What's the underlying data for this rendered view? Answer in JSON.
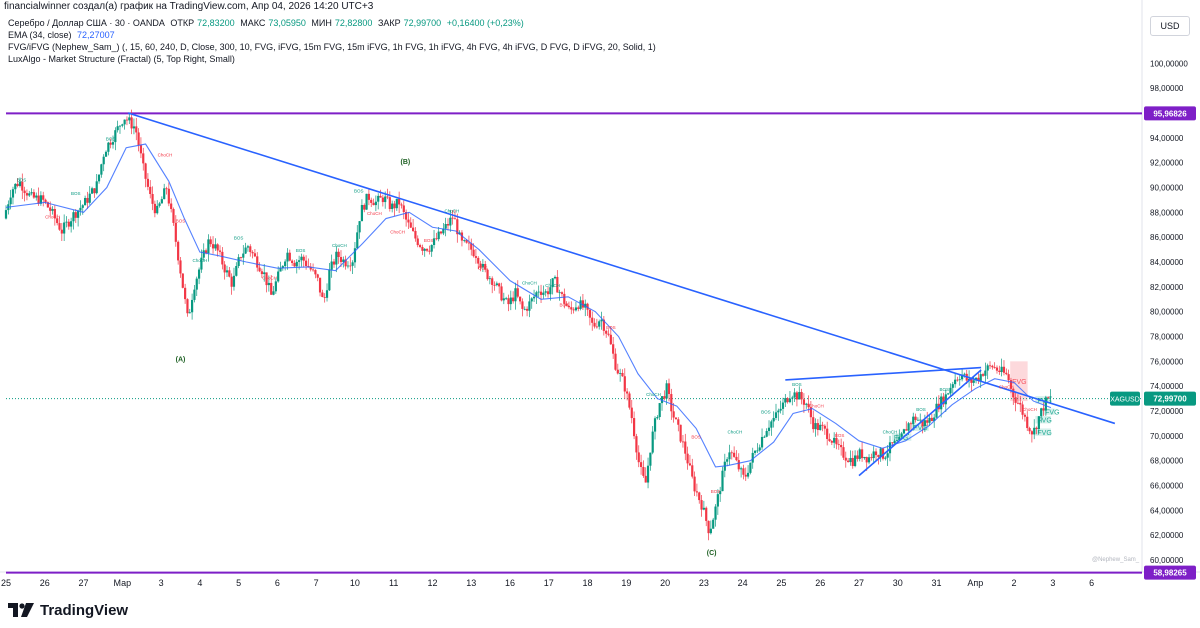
{
  "header": {
    "caption": "financialwinner создал(а) график на TradingView.com, Апр 04, 2026 14:20 UTC+3"
  },
  "legend": {
    "symbol": "Серебро / Доллар США · 30 · OANDA",
    "ohlc": [
      {
        "label": "ОТКР",
        "value": "72,83200"
      },
      {
        "label": "МАКС",
        "value": "73,05950"
      },
      {
        "label": "МИН",
        "value": "72,82800"
      },
      {
        "label": "ЗАКР",
        "value": "72,99700"
      }
    ],
    "change": "+0,16400 (+0,23%)",
    "ema_label": "EMA (34, close)",
    "ema_value": "72,27007",
    "fvg_label": "FVG/iFVG (Nephew_Sam_) (, 15, 60, 240, D, Close, 300, 10, FVG, iFVG, 15m FVG, 15m iFVG, 1h FVG, 1h iFVG, 4h FVG, 4h iFVG, D FVG, D iFVG, 20, Solid, 1)",
    "lux_label": "LuxAlgo - Market Structure (Fractal) (5, Top Right, Small)"
  },
  "currency_button": "USD",
  "watermark": "@Nephew_Sam_",
  "logo_text": "TradingView",
  "colors": {
    "up": "#089981",
    "down": "#f23645",
    "ema": "#2962ff",
    "trendline": "#2962ff",
    "level": "#7e1fc7",
    "price_line": "#089981",
    "fvg_green": "#22ab94",
    "fvg_red": "#f7525f"
  },
  "chart_data": {
    "type": "candlestick",
    "symbol": "XAGUSD",
    "y_axis_ticks": [
      "60,00000",
      "62,00000",
      "64,00000",
      "66,00000",
      "68,00000",
      "70,00000",
      "72,00000",
      "74,00000",
      "76,00000",
      "78,00000",
      "80,00000",
      "82,00000",
      "84,00000",
      "86,00000",
      "88,00000",
      "90,00000",
      "92,00000",
      "94,00000",
      "96,00000",
      "98,00000",
      "100,00000"
    ],
    "ylim": [
      59.6,
      102.2
    ],
    "x_axis_ticks": [
      {
        "t": 0,
        "label": "25"
      },
      {
        "t": 1,
        "label": "26"
      },
      {
        "t": 2,
        "label": "27"
      },
      {
        "t": 3,
        "label": "Мар"
      },
      {
        "t": 4,
        "label": "3"
      },
      {
        "t": 5,
        "label": "4"
      },
      {
        "t": 6,
        "label": "5"
      },
      {
        "t": 7,
        "label": "6"
      },
      {
        "t": 8,
        "label": "7"
      },
      {
        "t": 9,
        "label": "10"
      },
      {
        "t": 10,
        "label": "11"
      },
      {
        "t": 11,
        "label": "12"
      },
      {
        "t": 12,
        "label": "13"
      },
      {
        "t": 13,
        "label": "16"
      },
      {
        "t": 14,
        "label": "17"
      },
      {
        "t": 15,
        "label": "18"
      },
      {
        "t": 16,
        "label": "19"
      },
      {
        "t": 17,
        "label": "20"
      },
      {
        "t": 18,
        "label": "23"
      },
      {
        "t": 19,
        "label": "24"
      },
      {
        "t": 20,
        "label": "25"
      },
      {
        "t": 21,
        "label": "26"
      },
      {
        "t": 22,
        "label": "27"
      },
      {
        "t": 23,
        "label": "30"
      },
      {
        "t": 24,
        "label": "31"
      },
      {
        "t": 25,
        "label": "Апр"
      },
      {
        "t": 26,
        "label": "2"
      },
      {
        "t": 27,
        "label": "3"
      },
      {
        "t": 28,
        "label": "6"
      }
    ],
    "xlim": [
      0,
      29.3
    ],
    "price_path": [
      [
        0.0,
        87.5
      ],
      [
        0.2,
        89.8
      ],
      [
        0.4,
        90.5
      ],
      [
        0.7,
        89.2
      ],
      [
        1.0,
        89.0
      ],
      [
        1.2,
        88.2
      ],
      [
        1.5,
        86.5
      ],
      [
        1.8,
        87.8
      ],
      [
        2.1,
        88.8
      ],
      [
        2.4,
        90.2
      ],
      [
        2.6,
        93.0
      ],
      [
        2.9,
        94.5
      ],
      [
        3.1,
        95.7
      ],
      [
        3.4,
        94.8
      ],
      [
        3.6,
        91.5
      ],
      [
        3.8,
        89.0
      ],
      [
        3.95,
        88.0
      ],
      [
        4.2,
        90.0
      ],
      [
        4.4,
        86.5
      ],
      [
        4.6,
        82.5
      ],
      [
        4.75,
        79.3
      ],
      [
        4.9,
        82.0
      ],
      [
        5.1,
        84.0
      ],
      [
        5.3,
        85.8
      ],
      [
        5.5,
        85.0
      ],
      [
        5.7,
        83.5
      ],
      [
        5.9,
        82.2
      ],
      [
        6.1,
        84.5
      ],
      [
        6.3,
        85.3
      ],
      [
        6.5,
        84.2
      ],
      [
        6.7,
        83.2
      ],
      [
        6.9,
        81.3
      ],
      [
        7.1,
        83.0
      ],
      [
        7.3,
        84.8
      ],
      [
        7.5,
        84.0
      ],
      [
        7.7,
        84.3
      ],
      [
        7.9,
        83.5
      ],
      [
        8.1,
        82.5
      ],
      [
        8.25,
        80.6
      ],
      [
        8.4,
        83.2
      ],
      [
        8.6,
        84.6
      ],
      [
        8.8,
        84.0
      ],
      [
        9.0,
        84.2
      ],
      [
        9.2,
        88.0
      ],
      [
        9.4,
        89.3
      ],
      [
        9.6,
        88.8
      ],
      [
        9.8,
        89.2
      ],
      [
        10.0,
        88.4
      ],
      [
        10.2,
        88.8
      ],
      [
        10.4,
        87.2
      ],
      [
        10.6,
        86.0
      ],
      [
        10.8,
        85.2
      ],
      [
        11.0,
        85.2
      ],
      [
        11.2,
        86.0
      ],
      [
        11.4,
        86.8
      ],
      [
        11.6,
        87.7
      ],
      [
        11.8,
        85.5
      ],
      [
        12.0,
        85.2
      ],
      [
        12.2,
        84.6
      ],
      [
        12.4,
        83.2
      ],
      [
        12.6,
        82.6
      ],
      [
        12.8,
        81.5
      ],
      [
        13.0,
        80.5
      ],
      [
        13.2,
        81.5
      ],
      [
        13.4,
        80.0
      ],
      [
        13.6,
        80.8
      ],
      [
        13.8,
        81.8
      ],
      [
        14.0,
        81.5
      ],
      [
        14.2,
        82.5
      ],
      [
        14.4,
        81.2
      ],
      [
        14.6,
        80.0
      ],
      [
        14.8,
        80.7
      ],
      [
        15.0,
        80.2
      ],
      [
        15.2,
        78.8
      ],
      [
        15.4,
        79.5
      ],
      [
        15.6,
        78.0
      ],
      [
        15.8,
        75.5
      ],
      [
        16.0,
        74.2
      ],
      [
        16.2,
        71.5
      ],
      [
        16.4,
        67.5
      ],
      [
        16.55,
        66.0
      ],
      [
        16.7,
        69.5
      ],
      [
        16.9,
        72.5
      ],
      [
        17.1,
        73.8
      ],
      [
        17.25,
        71.8
      ],
      [
        17.4,
        70.5
      ],
      [
        17.6,
        68.5
      ],
      [
        17.8,
        66.0
      ],
      [
        18.0,
        64.5
      ],
      [
        18.2,
        62.3
      ],
      [
        18.35,
        64.0
      ],
      [
        18.5,
        66.2
      ],
      [
        18.7,
        69.0
      ],
      [
        18.9,
        67.8
      ],
      [
        19.1,
        66.5
      ],
      [
        19.3,
        68.2
      ],
      [
        19.5,
        69.5
      ],
      [
        19.7,
        70.8
      ],
      [
        19.9,
        71.5
      ],
      [
        20.1,
        72.5
      ],
      [
        20.3,
        73.5
      ],
      [
        20.5,
        73.2
      ],
      [
        20.7,
        72.6
      ],
      [
        20.9,
        70.8
      ],
      [
        21.1,
        70.6
      ],
      [
        21.3,
        70.0
      ],
      [
        21.5,
        69.0
      ],
      [
        21.7,
        68.4
      ],
      [
        21.9,
        68.0
      ],
      [
        22.1,
        68.6
      ],
      [
        22.3,
        68.2
      ],
      [
        22.5,
        68.8
      ],
      [
        22.7,
        68.4
      ],
      [
        22.9,
        69.2
      ],
      [
        23.1,
        69.5
      ],
      [
        23.3,
        70.8
      ],
      [
        23.5,
        71.5
      ],
      [
        23.7,
        71.0
      ],
      [
        23.9,
        71.3
      ],
      [
        24.1,
        72.5
      ],
      [
        24.3,
        73.2
      ],
      [
        24.5,
        74.5
      ],
      [
        24.7,
        75.0
      ],
      [
        24.9,
        74.3
      ],
      [
        25.1,
        74.6
      ],
      [
        25.3,
        75.3
      ],
      [
        25.5,
        75.6
      ],
      [
        25.7,
        75.2
      ],
      [
        25.9,
        74.8
      ],
      [
        26.0,
        73.5
      ],
      [
        26.2,
        72.5
      ],
      [
        26.4,
        71.0
      ],
      [
        26.55,
        70.2
      ],
      [
        26.7,
        71.5
      ],
      [
        26.85,
        72.6
      ],
      [
        26.95,
        73.0
      ]
    ],
    "ema_34": [
      [
        0.0,
        88.4
      ],
      [
        1.0,
        88.8
      ],
      [
        2.0,
        88.0
      ],
      [
        2.6,
        90.0
      ],
      [
        3.1,
        93.2
      ],
      [
        3.6,
        93.5
      ],
      [
        4.2,
        90.5
      ],
      [
        4.6,
        87.5
      ],
      [
        5.0,
        84.8
      ],
      [
        5.5,
        84.5
      ],
      [
        6.2,
        84.0
      ],
      [
        7.0,
        83.5
      ],
      [
        7.8,
        83.6
      ],
      [
        8.5,
        83.3
      ],
      [
        9.2,
        85.5
      ],
      [
        9.8,
        87.5
      ],
      [
        10.4,
        88.0
      ],
      [
        11.0,
        86.8
      ],
      [
        11.6,
        86.5
      ],
      [
        12.2,
        85.0
      ],
      [
        13.0,
        82.5
      ],
      [
        13.8,
        81.0
      ],
      [
        14.5,
        81.2
      ],
      [
        15.2,
        80.0
      ],
      [
        15.8,
        78.0
      ],
      [
        16.3,
        75.0
      ],
      [
        16.8,
        73.0
      ],
      [
        17.3,
        72.4
      ],
      [
        17.8,
        70.6
      ],
      [
        18.3,
        67.5
      ],
      [
        18.6,
        67.6
      ],
      [
        19.2,
        68.0
      ],
      [
        19.8,
        69.5
      ],
      [
        20.3,
        71.8
      ],
      [
        20.8,
        72.2
      ],
      [
        21.4,
        71.0
      ],
      [
        22.0,
        69.6
      ],
      [
        22.6,
        69.0
      ],
      [
        23.2,
        69.6
      ],
      [
        23.8,
        70.8
      ],
      [
        24.4,
        72.5
      ],
      [
        25.0,
        73.8
      ],
      [
        25.5,
        74.6
      ],
      [
        26.0,
        74.3
      ],
      [
        26.5,
        72.8
      ],
      [
        26.95,
        72.27
      ]
    ],
    "trendlines": [
      {
        "from": [
          3.15,
          96.0
        ],
        "to": [
          28.6,
          71.0
        ]
      },
      {
        "from": [
          20.1,
          74.5
        ],
        "to": [
          25.15,
          75.5
        ]
      },
      {
        "from": [
          22.0,
          66.8
        ],
        "to": [
          25.15,
          75.3
        ]
      }
    ],
    "horizontal_levels": [
      {
        "value": 95.96826,
        "label": "95,96826"
      },
      {
        "value": 58.98265,
        "label": "58,98265"
      }
    ],
    "last_price": {
      "value": 72.997,
      "label": "72,99700",
      "symbol": "XAGUSD"
    },
    "wave_labels": [
      {
        "text": "(A)",
        "t": 4.5,
        "y": 76.0
      },
      {
        "text": "(B)",
        "t": 10.3,
        "y": 91.9
      },
      {
        "text": "(C)",
        "t": 18.2,
        "y": 60.4
      }
    ],
    "annotations": [
      {
        "text": "BOS",
        "t": 0.4,
        "y": 90.5,
        "kind": "up"
      },
      {
        "text": "BOS",
        "t": 1.8,
        "y": 89.4,
        "kind": "up"
      },
      {
        "text": "ChoCH",
        "t": 1.2,
        "y": 87.5,
        "kind": "down"
      },
      {
        "text": "BOS",
        "t": 2.7,
        "y": 93.8,
        "kind": "up"
      },
      {
        "text": "ChoCH",
        "t": 4.1,
        "y": 92.5,
        "kind": "down"
      },
      {
        "text": "BOS",
        "t": 4.5,
        "y": 87.2,
        "kind": "down"
      },
      {
        "text": "ChoCH",
        "t": 5.0,
        "y": 84.0,
        "kind": "up"
      },
      {
        "text": "BOS",
        "t": 6.0,
        "y": 85.8,
        "kind": "up"
      },
      {
        "text": "ChoCH",
        "t": 6.8,
        "y": 82.6,
        "kind": "down"
      },
      {
        "text": "BOS",
        "t": 7.6,
        "y": 84.8,
        "kind": "up"
      },
      {
        "text": "ChoCH",
        "t": 8.6,
        "y": 85.2,
        "kind": "up"
      },
      {
        "text": "BOS",
        "t": 9.1,
        "y": 89.6,
        "kind": "up"
      },
      {
        "text": "ChoCH",
        "t": 9.5,
        "y": 87.8,
        "kind": "down"
      },
      {
        "text": "ChoCH",
        "t": 10.1,
        "y": 86.3,
        "kind": "down"
      },
      {
        "text": "BOS",
        "t": 10.9,
        "y": 85.6,
        "kind": "down"
      },
      {
        "text": "ChoCH",
        "t": 11.5,
        "y": 88.0,
        "kind": "up"
      },
      {
        "text": "BOS",
        "t": 12.3,
        "y": 83.4,
        "kind": "down"
      },
      {
        "text": "ChoCH",
        "t": 13.5,
        "y": 82.2,
        "kind": "up"
      },
      {
        "text": "ChoCH",
        "t": 14.1,
        "y": 82.0,
        "kind": "up"
      },
      {
        "text": "BOS",
        "t": 14.4,
        "y": 80.4,
        "kind": "down"
      },
      {
        "text": "BOS",
        "t": 15.6,
        "y": 78.6,
        "kind": "down"
      },
      {
        "text": "ChoCH",
        "t": 16.7,
        "y": 73.2,
        "kind": "up"
      },
      {
        "text": "BOS",
        "t": 17.8,
        "y": 69.8,
        "kind": "down"
      },
      {
        "text": "BOS",
        "t": 18.3,
        "y": 65.4,
        "kind": "down"
      },
      {
        "text": "ChoCH",
        "t": 18.8,
        "y": 70.2,
        "kind": "up"
      },
      {
        "text": "BOS",
        "t": 19.6,
        "y": 71.8,
        "kind": "up"
      },
      {
        "text": "BOS",
        "t": 20.4,
        "y": 74.0,
        "kind": "up"
      },
      {
        "text": "ChoCH",
        "t": 20.9,
        "y": 72.3,
        "kind": "down"
      },
      {
        "text": "BOS",
        "t": 21.5,
        "y": 69.9,
        "kind": "down"
      },
      {
        "text": "ChoCH",
        "t": 22.8,
        "y": 70.2,
        "kind": "up"
      },
      {
        "text": "BOS",
        "t": 23.6,
        "y": 72.0,
        "kind": "up"
      },
      {
        "text": "BOS",
        "t": 24.2,
        "y": 73.6,
        "kind": "up"
      },
      {
        "text": "ChoCH",
        "t": 25.8,
        "y": 73.8,
        "kind": "down"
      },
      {
        "text": "ChoCH",
        "t": 26.4,
        "y": 72.0,
        "kind": "down"
      }
    ],
    "fvg_boxes": [
      {
        "text": "FVG",
        "t0": 22.85,
        "t1": 23.35,
        "y0": 69.6,
        "y1": 70.2,
        "kind": "green"
      },
      {
        "text": "FVG",
        "t0": 23.35,
        "t1": 23.8,
        "y0": 70.4,
        "y1": 71.0,
        "kind": "green"
      },
      {
        "text": "FVG",
        "t0": 25.9,
        "t1": 26.35,
        "y0": 72.8,
        "y1": 76.0,
        "kind": "red"
      },
      {
        "text": "FVG",
        "t0": 26.55,
        "t1": 26.95,
        "y0": 72.6,
        "y1": 73.2,
        "kind": "green"
      },
      {
        "text": "FVG",
        "t0": 26.75,
        "t1": 27.05,
        "y0": 71.7,
        "y1": 72.2,
        "kind": "green"
      },
      {
        "text": "FVG",
        "t0": 26.55,
        "t1": 26.95,
        "y0": 71.0,
        "y1": 71.6,
        "kind": "green"
      },
      {
        "text": "FVG",
        "t0": 26.55,
        "t1": 26.95,
        "y0": 70.0,
        "y1": 70.6,
        "kind": "green"
      }
    ]
  }
}
